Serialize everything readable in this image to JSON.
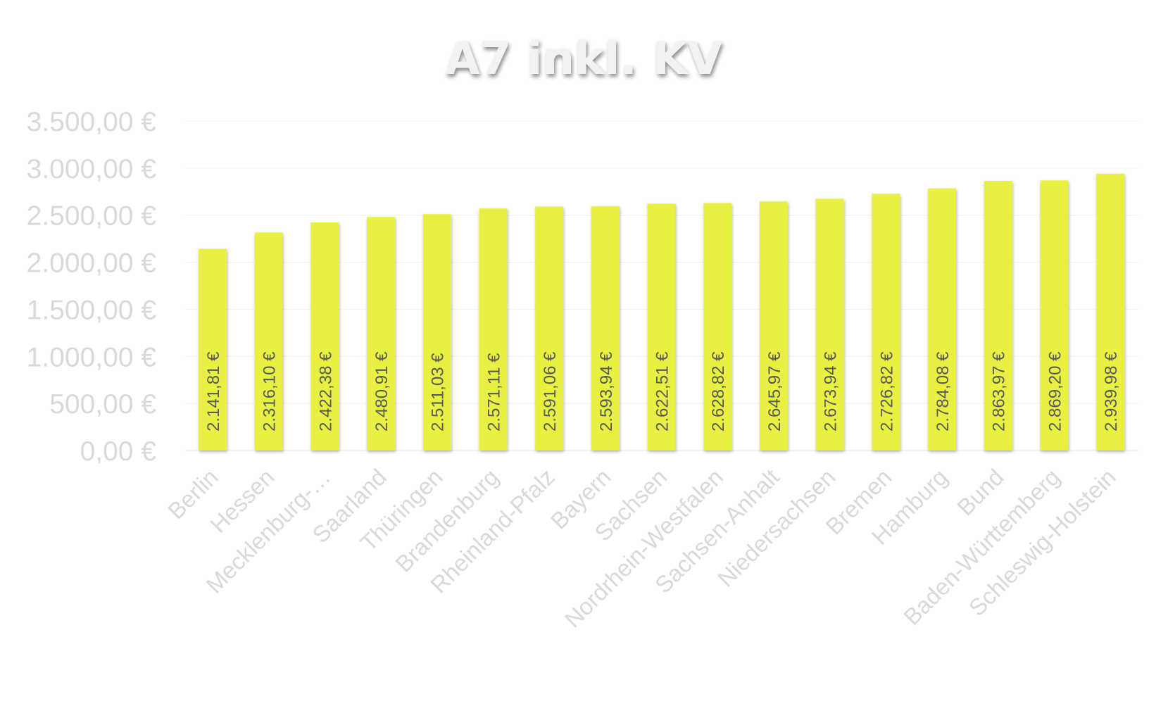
{
  "chart_data": {
    "type": "bar",
    "title": "A7 inkl. KV",
    "xlabel": "",
    "ylabel": "",
    "categories": [
      "Berlin",
      "Hessen",
      "Mecklenburg-…",
      "Saarland",
      "Thüringen",
      "Brandenburg",
      "Rheinland-Pfalz",
      "Bayern",
      "Sachsen",
      "Nordrhein-Westfalen",
      "Sachsen-Anhalt",
      "Niedersachsen",
      "Bremen",
      "Hamburg",
      "Bund",
      "Baden-Württemberg",
      "Schleswig-Holstein"
    ],
    "values": [
      2141.81,
      2316.1,
      2422.38,
      2480.91,
      2511.03,
      2571.11,
      2591.06,
      2593.94,
      2622.51,
      2628.82,
      2645.97,
      2673.94,
      2726.82,
      2784.08,
      2863.97,
      2869.2,
      2939.98
    ],
    "value_labels": [
      "2.141,81 €",
      "2.316,10 €",
      "2.422,38 €",
      "2.480,91 €",
      "2.511,03 €",
      "2.571,11 €",
      "2.591,06 €",
      "2.593,94 €",
      "2.622,51 €",
      "2.628,82 €",
      "2.645,97 €",
      "2.673,94 €",
      "2.726,82 €",
      "2.784,08 €",
      "2.863,97 €",
      "2.869,20 €",
      "2.939,98 €"
    ],
    "yticks": [
      0,
      500,
      1000,
      1500,
      2000,
      2500,
      3000,
      3500
    ],
    "ytick_labels": [
      "0,00 €",
      "500,00 €",
      "1.000,00 €",
      "1.500,00 €",
      "2.000,00 €",
      "2.500,00 €",
      "3.000,00 €",
      "3.500,00 €"
    ],
    "ylim": [
      0,
      3500
    ],
    "grid": true,
    "legend": "none",
    "colors": {
      "bar": "#e8f043",
      "value_label": "#595959",
      "axis_text": "#d9d9d9",
      "title": "#f2f2f2",
      "grid": "#f2f2f2"
    }
  }
}
